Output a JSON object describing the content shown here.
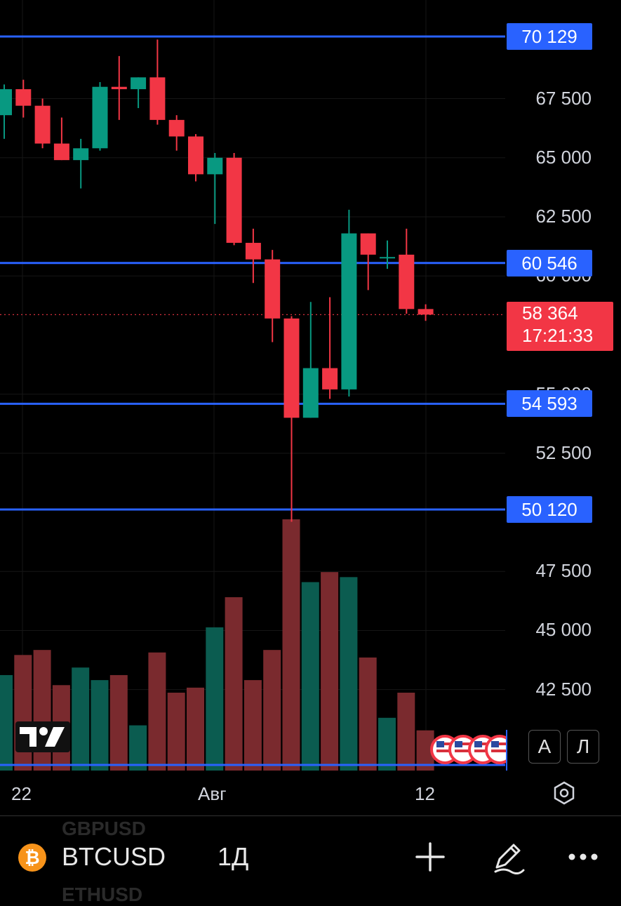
{
  "chart_data": {
    "type": "candlestick",
    "symbol": "BTCUSD",
    "interval": "1Д",
    "y_axis": {
      "ticks": [
        "67 500",
        "65 000",
        "62 500",
        "60 000",
        "55 000",
        "52 500",
        "47 500",
        "45 000",
        "42 500"
      ],
      "tick_values": [
        67500,
        65000,
        62500,
        60000,
        55000,
        52500,
        47500,
        45000,
        42500
      ],
      "range": [
        40500,
        71400
      ]
    },
    "x_axis": {
      "ticks": [
        "22",
        "Авг",
        "12"
      ]
    },
    "candles": [
      {
        "o": 66800,
        "h": 68100,
        "l": 65800,
        "c": 67900
      },
      {
        "o": 67900,
        "h": 68300,
        "l": 66700,
        "c": 67200
      },
      {
        "o": 67200,
        "h": 67500,
        "l": 65400,
        "c": 65600
      },
      {
        "o": 65600,
        "h": 66700,
        "l": 64900,
        "c": 64900
      },
      {
        "o": 64900,
        "h": 65800,
        "l": 63700,
        "c": 65400
      },
      {
        "o": 65400,
        "h": 68200,
        "l": 65300,
        "c": 68000
      },
      {
        "o": 68000,
        "h": 69300,
        "l": 66600,
        "c": 67900
      },
      {
        "o": 67900,
        "h": 68400,
        "l": 67100,
        "c": 68400
      },
      {
        "o": 68400,
        "h": 70000,
        "l": 66400,
        "c": 66600
      },
      {
        "o": 66600,
        "h": 66800,
        "l": 65300,
        "c": 65900
      },
      {
        "o": 65900,
        "h": 66000,
        "l": 64000,
        "c": 64300
      },
      {
        "o": 64300,
        "h": 65200,
        "l": 62200,
        "c": 65000
      },
      {
        "o": 65000,
        "h": 65200,
        "l": 61300,
        "c": 61400
      },
      {
        "o": 61400,
        "h": 62000,
        "l": 59700,
        "c": 60700
      },
      {
        "o": 60700,
        "h": 61100,
        "l": 57200,
        "c": 58200
      },
      {
        "o": 58200,
        "h": 58300,
        "l": 49600,
        "c": 54000
      },
      {
        "o": 54000,
        "h": 58900,
        "l": 54000,
        "c": 56100
      },
      {
        "o": 56100,
        "h": 59100,
        "l": 54800,
        "c": 55200
      },
      {
        "o": 55200,
        "h": 62800,
        "l": 54900,
        "c": 61800
      },
      {
        "o": 61800,
        "h": 61800,
        "l": 59400,
        "c": 60900
      },
      {
        "o": 60800,
        "h": 61500,
        "l": 60300,
        "c": 60800
      },
      {
        "o": 60900,
        "h": 62000,
        "l": 58400,
        "c": 58600
      },
      {
        "o": 58600,
        "h": 58800,
        "l": 58100,
        "c": 58364
      }
    ],
    "volume_relative": [
      0.38,
      0.46,
      0.48,
      0.34,
      0.41,
      0.36,
      0.38,
      0.18,
      0.47,
      0.31,
      0.33,
      0.57,
      0.69,
      0.36,
      0.48,
      1.0,
      0.75,
      0.79,
      0.77,
      0.45,
      0.21,
      0.31,
      0.16
    ],
    "horizontal_levels": [
      {
        "label": "70 129",
        "value": 70129
      },
      {
        "label": "60 546",
        "value": 60546
      },
      {
        "label": "54 593",
        "value": 54593
      },
      {
        "label": "50 120",
        "value": 50120
      }
    ],
    "current_price": {
      "label": "58 364",
      "value": 58364,
      "countdown": "17:21:33"
    },
    "colors": {
      "up": "#089981",
      "down": "#f23645",
      "level": "#2962ff",
      "up_volume": "#0b5c50",
      "down_volume": "#7a2a2e"
    }
  },
  "scale_buttons": {
    "auto": "А",
    "log": "Л"
  },
  "bottom_bar": {
    "symbol": "BTCUSD",
    "interval": "1Д",
    "ghost_top": "GBPUSD",
    "ghost_bottom": "ETHUSD",
    "icons": [
      "bitcoin-icon",
      "plus-icon",
      "pen-icon",
      "more-icon"
    ]
  }
}
